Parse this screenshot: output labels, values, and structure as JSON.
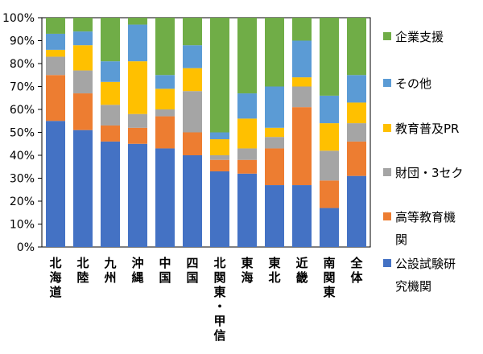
{
  "chart_data": {
    "type": "bar",
    "stacked": true,
    "percent": true,
    "title": "",
    "xlabel": "",
    "ylabel": "",
    "ylim": [
      0,
      100
    ],
    "yticks": [
      "0%",
      "10%",
      "20%",
      "30%",
      "40%",
      "50%",
      "60%",
      "70%",
      "80%",
      "90%",
      "100%"
    ],
    "grid": false,
    "legend_position": "right",
    "categories": [
      "北海道",
      "北陸",
      "九州",
      "沖縄",
      "中国",
      "四国",
      "北関東・甲信",
      "東海",
      "東北",
      "近畿",
      "南関東",
      "全体"
    ],
    "category_lines": [
      [
        "北",
        "海",
        "道"
      ],
      [
        "北",
        "陸"
      ],
      [
        "九",
        "州"
      ],
      [
        "沖",
        "縄"
      ],
      [
        "中",
        "国"
      ],
      [
        "四",
        "国"
      ],
      [
        "北",
        "関",
        "東",
        "・",
        "甲",
        "信"
      ],
      [
        "東",
        "海"
      ],
      [
        "東",
        "北"
      ],
      [
        "近",
        "畿"
      ],
      [
        "南",
        "関",
        "東"
      ],
      [
        "全",
        "体"
      ]
    ],
    "series": [
      {
        "name": "公設試験研究機関",
        "color": "#4472C4",
        "values": [
          55,
          51,
          46,
          45,
          43,
          40,
          33,
          32,
          27,
          27,
          17,
          31
        ]
      },
      {
        "name": "高等教育機関",
        "color": "#ED7D31",
        "values": [
          20,
          16,
          7,
          7,
          14,
          10,
          5,
          6,
          16,
          34,
          12,
          15
        ]
      },
      {
        "name": "財団・3セク",
        "color": "#A5A5A5",
        "values": [
          8,
          10,
          9,
          6,
          3,
          18,
          2,
          5,
          5,
          9,
          13,
          8
        ]
      },
      {
        "name": "教育普及PR",
        "color": "#FFC000",
        "values": [
          3,
          11,
          10,
          23,
          9,
          10,
          7,
          13,
          4,
          4,
          12,
          9
        ]
      },
      {
        "name": "その他",
        "color": "#5B9BD5",
        "values": [
          7,
          6,
          9,
          16,
          6,
          10,
          3,
          11,
          18,
          16,
          12,
          12
        ]
      },
      {
        "name": "企業支援",
        "color": "#70AD47",
        "values": [
          7,
          6,
          19,
          3,
          25,
          12,
          50,
          33,
          30,
          10,
          34,
          25
        ]
      }
    ],
    "legend_lines": [
      [
        "企業支援"
      ],
      [
        "その他"
      ],
      [
        "教育普及PR"
      ],
      [
        "財団・3セク"
      ],
      [
        "高等教育機",
        "関"
      ],
      [
        "公設試験研",
        "究機関"
      ]
    ]
  }
}
